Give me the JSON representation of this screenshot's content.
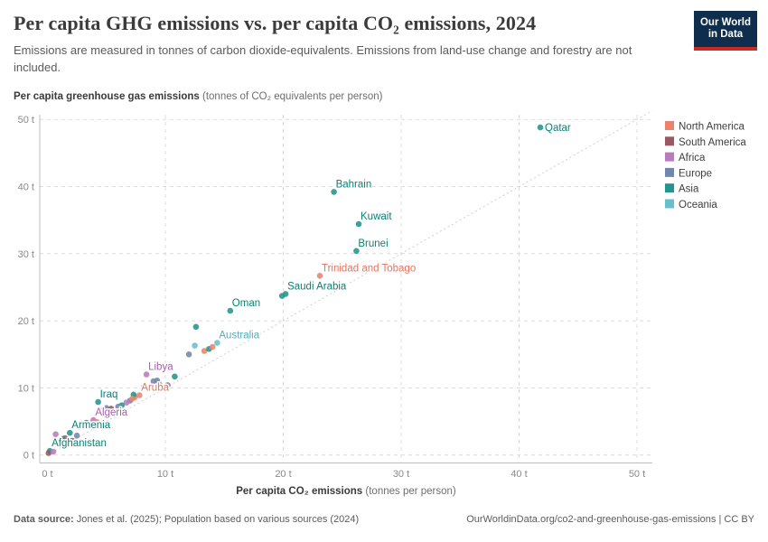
{
  "header": {
    "title": "Per capita GHG emissions vs. per capita CO₂ emissions, 2024",
    "subtitle": "Emissions are measured in tonnes of carbon dioxide-equivalents. Emissions from land-use change and forestry are not included."
  },
  "logo": {
    "line1": "Our World",
    "line2": "in Data"
  },
  "footer": {
    "datasource_label": "Data source:",
    "datasource_text": " Jones et al. (2025); Population based on various sources (2024)",
    "attribution": "OurWorldinData.org/co2-and-greenhouse-gas-emissions | CC BY"
  },
  "chart_data": {
    "type": "scatter",
    "title": "Per capita GHG emissions vs. per capita CO₂ emissions, 2024",
    "x_axis": {
      "label_bold": "Per capita CO₂ emissions",
      "label_normal": " (tonnes per person)",
      "range": [
        0,
        52
      ],
      "ticks": [
        {
          "v": 0,
          "label": "0 t"
        },
        {
          "v": 10,
          "label": "10 t"
        },
        {
          "v": 20,
          "label": "20 t"
        },
        {
          "v": 30,
          "label": "30 t"
        },
        {
          "v": 40,
          "label": "40 t"
        },
        {
          "v": 50,
          "label": "50 t"
        }
      ]
    },
    "y_axis": {
      "label_bold": "Per capita greenhouse gas emissions",
      "label_normal": " (tonnes of CO₂ equivalents per person)",
      "range": [
        0,
        51
      ],
      "ticks": [
        {
          "v": 0,
          "label": "0 t"
        },
        {
          "v": 10,
          "label": "10 t"
        },
        {
          "v": 20,
          "label": "20 t"
        },
        {
          "v": 30,
          "label": "30 t"
        },
        {
          "v": 40,
          "label": "40 t"
        },
        {
          "v": 50,
          "label": "50 t"
        }
      ]
    },
    "grid": true,
    "diagonal_reference_line": true,
    "legend_position": "right",
    "legend": [
      {
        "key": "north_america",
        "label": "North America"
      },
      {
        "key": "south_america",
        "label": "South America"
      },
      {
        "key": "africa",
        "label": "Africa"
      },
      {
        "key": "europe",
        "label": "Europe"
      },
      {
        "key": "asia",
        "label": "Asia"
      },
      {
        "key": "oceania",
        "label": "Oceania"
      }
    ],
    "palette": {
      "north_america": {
        "dot": "#E8846D",
        "text": "#E8735C"
      },
      "south_america": {
        "dot": "#9B5762",
        "text": "#8A4550"
      },
      "africa": {
        "dot": "#BA7BBE",
        "text": "#A55FA8"
      },
      "europe": {
        "dot": "#7287B0",
        "text": "#5C729E"
      },
      "asia": {
        "dot": "#23958C",
        "text": "#0B8074"
      },
      "oceania": {
        "dot": "#68C0CD",
        "text": "#4FAFC0"
      }
    },
    "points": [
      {
        "x": 41.8,
        "y": 48.8,
        "c": "asia",
        "label": "Qatar",
        "label_pos": "right"
      },
      {
        "x": 24.3,
        "y": 39.2,
        "c": "asia",
        "label": "Bahrain",
        "label_pos": "above"
      },
      {
        "x": 26.4,
        "y": 34.4,
        "c": "asia",
        "label": "Kuwait",
        "label_pos": "above"
      },
      {
        "x": 26.2,
        "y": 30.4,
        "c": "asia",
        "label": "Brunei",
        "label_pos": "above"
      },
      {
        "x": 23.1,
        "y": 26.7,
        "c": "north_america",
        "label": "Trinidad and Tobago",
        "label_pos": "above"
      },
      {
        "x": 20.2,
        "y": 24.0,
        "c": "asia",
        "label": "Saudi Arabia",
        "label_pos": "above"
      },
      {
        "x": 15.5,
        "y": 21.5,
        "c": "asia",
        "label": "Oman",
        "label_pos": "above"
      },
      {
        "x": 14.4,
        "y": 16.7,
        "c": "oceania",
        "label": "Australia",
        "label_pos": "above"
      },
      {
        "x": 8.4,
        "y": 12.0,
        "c": "africa",
        "label": "Libya",
        "label_pos": "above"
      },
      {
        "x": 7.8,
        "y": 8.9,
        "c": "north_america",
        "label": "Aruba",
        "label_pos": "above"
      },
      {
        "x": 4.3,
        "y": 7.9,
        "c": "asia",
        "label": "Iraq",
        "label_pos": "above"
      },
      {
        "x": 3.9,
        "y": 5.2,
        "c": "africa",
        "label": "Algeria",
        "label_pos": "above"
      },
      {
        "x": 1.9,
        "y": 3.3,
        "c": "asia",
        "label": "Armenia",
        "label_pos": "above"
      },
      {
        "x": 0.2,
        "y": 0.6,
        "c": "asia",
        "label": "Afghanistan",
        "label_pos": "above"
      },
      {
        "x": 19.9,
        "y": 23.7,
        "c": "asia"
      },
      {
        "x": 12.6,
        "y": 19.1,
        "c": "asia"
      },
      {
        "x": 12.0,
        "y": 15.0,
        "c": "europe"
      },
      {
        "x": 12.5,
        "y": 16.3,
        "c": "oceania"
      },
      {
        "x": 13.3,
        "y": 15.5,
        "c": "north_america"
      },
      {
        "x": 13.7,
        "y": 15.8,
        "c": "asia"
      },
      {
        "x": 14.0,
        "y": 16.1,
        "c": "north_america"
      },
      {
        "x": 10.8,
        "y": 11.7,
        "c": "asia"
      },
      {
        "x": 9.0,
        "y": 11.0,
        "c": "europe"
      },
      {
        "x": 9.3,
        "y": 11.1,
        "c": "europe"
      },
      {
        "x": 9.5,
        "y": 10.5,
        "c": "europe"
      },
      {
        "x": 10.2,
        "y": 10.4,
        "c": "europe"
      },
      {
        "x": 8.2,
        "y": 10.2,
        "c": "asia"
      },
      {
        "x": 7.4,
        "y": 8.6,
        "c": "north_america"
      },
      {
        "x": 7.3,
        "y": 9.0,
        "c": "asia"
      },
      {
        "x": 7.0,
        "y": 8.1,
        "c": "europe"
      },
      {
        "x": 6.7,
        "y": 7.8,
        "c": "africa"
      },
      {
        "x": 6.3,
        "y": 7.4,
        "c": "asia"
      },
      {
        "x": 6.0,
        "y": 7.2,
        "c": "europe"
      },
      {
        "x": 7.2,
        "y": 8.4,
        "c": "north_america"
      },
      {
        "x": 5.0,
        "y": 7.0,
        "c": "europe"
      },
      {
        "x": 5.4,
        "y": 6.9,
        "c": "south_america"
      },
      {
        "x": 4.6,
        "y": 6.6,
        "c": "africa"
      },
      {
        "x": 3.3,
        "y": 4.8,
        "c": "asia"
      },
      {
        "x": 3.6,
        "y": 4.5,
        "c": "south_america"
      },
      {
        "x": 4.2,
        "y": 4.9,
        "c": "north_america"
      },
      {
        "x": 4.4,
        "y": 4.3,
        "c": "europe"
      },
      {
        "x": 4.7,
        "y": 4.7,
        "c": "south_america"
      },
      {
        "x": 0.7,
        "y": 3.1,
        "c": "africa"
      },
      {
        "x": 1.5,
        "y": 2.5,
        "c": "south_america"
      },
      {
        "x": 1.7,
        "y": 2.3,
        "c": "africa"
      },
      {
        "x": 1.6,
        "y": 1.9,
        "c": "north_america"
      },
      {
        "x": 2.1,
        "y": 2.1,
        "c": "south_america"
      },
      {
        "x": 1.3,
        "y": 2.4,
        "c": "asia"
      },
      {
        "x": 2.5,
        "y": 2.9,
        "c": "europe"
      },
      {
        "x": 0.1,
        "y": 0.3,
        "c": "south_america"
      },
      {
        "x": 0.5,
        "y": 0.5,
        "c": "africa"
      }
    ]
  }
}
